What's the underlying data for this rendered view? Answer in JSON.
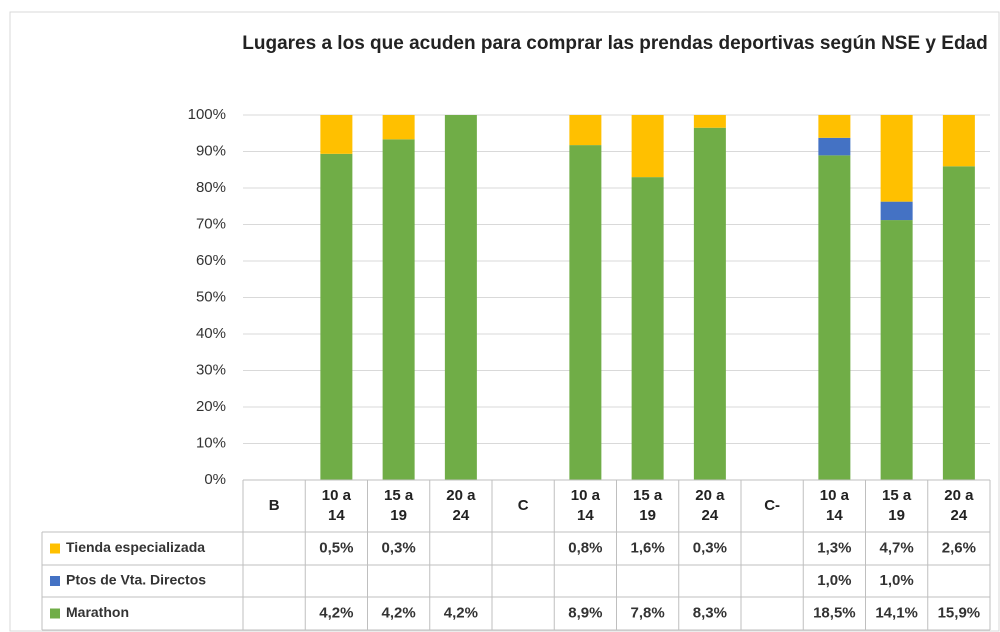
{
  "chart_data": {
    "type": "bar",
    "stacked": true,
    "normalized": true,
    "title": "Lugares a los que acuden para comprar las prendas  deportivas según NSE y Edad",
    "categories": [
      "B",
      "10 a 14",
      "15 a 19",
      "20 a 24",
      "C",
      "10 a 14",
      "15 a 19",
      "20 a 24",
      "C-",
      "10 a 14",
      "15 a 19",
      "20 a 24"
    ],
    "series": [
      {
        "name": "Tienda especializada",
        "color": "#ffc000",
        "values": [
          null,
          0.5,
          0.3,
          null,
          null,
          0.8,
          1.6,
          0.3,
          null,
          1.3,
          4.7,
          2.6
        ],
        "value_labels": [
          null,
          "0,5%",
          "0,3%",
          null,
          null,
          "0,8%",
          "1,6%",
          "0,3%",
          null,
          "1,3%",
          "4,7%",
          "2,6%"
        ]
      },
      {
        "name": "Ptos de Vta. Directos",
        "color": "#4472c4",
        "values": [
          null,
          null,
          null,
          null,
          null,
          null,
          null,
          null,
          null,
          1.0,
          1.0,
          null
        ],
        "value_labels": [
          null,
          null,
          null,
          null,
          null,
          null,
          null,
          null,
          null,
          "1,0%",
          "1,0%",
          null
        ]
      },
      {
        "name": "Marathon",
        "color": "#70ad47",
        "values": [
          null,
          4.2,
          4.2,
          4.2,
          null,
          8.9,
          7.8,
          8.3,
          null,
          18.5,
          14.1,
          15.9
        ],
        "value_labels": [
          null,
          "4,2%",
          "4,2%",
          "4,2%",
          null,
          "8,9%",
          "7,8%",
          "8,3%",
          null,
          "18,5%",
          "14,1%",
          "15,9%"
        ]
      }
    ],
    "ylim": [
      0,
      100
    ],
    "yticks": [
      {
        "value": 0,
        "label": "0%"
      },
      {
        "value": 10,
        "label": "10%"
      },
      {
        "value": 20,
        "label": "20%"
      },
      {
        "value": 30,
        "label": "30%"
      },
      {
        "value": 40,
        "label": "40%"
      },
      {
        "value": 50,
        "label": "50%"
      },
      {
        "value": 60,
        "label": "60%"
      },
      {
        "value": 70,
        "label": "70%"
      },
      {
        "value": 80,
        "label": "80%"
      },
      {
        "value": 90,
        "label": "90%"
      },
      {
        "value": 100,
        "label": "100%"
      }
    ],
    "grid": true
  }
}
